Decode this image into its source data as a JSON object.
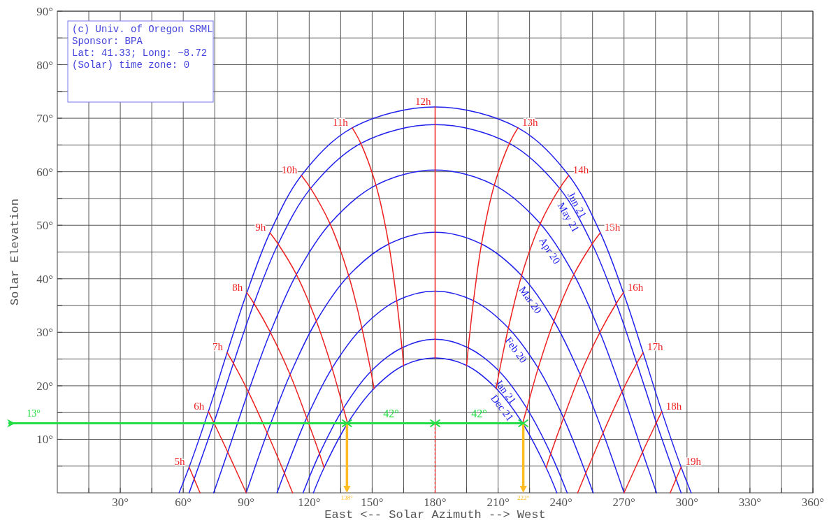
{
  "chart_data": {
    "type": "line",
    "xlabel": "East <-- Solar Azimuth --> West",
    "ylabel": "Solar Elevation",
    "xlim": [
      0,
      360
    ],
    "ylim": [
      0,
      90
    ],
    "xticks": [
      {
        "value": 15,
        "label": null
      },
      {
        "value": 30,
        "label": "30°"
      },
      {
        "value": 45,
        "label": null
      },
      {
        "value": 60,
        "label": "60°"
      },
      {
        "value": 75,
        "label": null
      },
      {
        "value": 90,
        "label": "90°"
      },
      {
        "value": 105,
        "label": null
      },
      {
        "value": 120,
        "label": "120°"
      },
      {
        "value": 135,
        "label": null
      },
      {
        "value": 150,
        "label": "150°"
      },
      {
        "value": 165,
        "label": null
      },
      {
        "value": 180,
        "label": "180°"
      },
      {
        "value": 195,
        "label": null
      },
      {
        "value": 210,
        "label": "210°"
      },
      {
        "value": 225,
        "label": null
      },
      {
        "value": 240,
        "label": "240°"
      },
      {
        "value": 255,
        "label": null
      },
      {
        "value": 270,
        "label": "270°"
      },
      {
        "value": 285,
        "label": null
      },
      {
        "value": 300,
        "label": "300°"
      },
      {
        "value": 315,
        "label": null
      },
      {
        "value": 330,
        "label": "330°"
      },
      {
        "value": 345,
        "label": null
      },
      {
        "value": 360,
        "label": "360°"
      }
    ],
    "yticks": [
      {
        "value": 5,
        "label": null
      },
      {
        "value": 10,
        "label": "10°"
      },
      {
        "value": 15,
        "label": null
      },
      {
        "value": 20,
        "label": "20°"
      },
      {
        "value": 25,
        "label": null
      },
      {
        "value": 30,
        "label": "30°"
      },
      {
        "value": 35,
        "label": null
      },
      {
        "value": 40,
        "label": "40°"
      },
      {
        "value": 45,
        "label": null
      },
      {
        "value": 50,
        "label": "50°"
      },
      {
        "value": 55,
        "label": null
      },
      {
        "value": 60,
        "label": "60°"
      },
      {
        "value": 65,
        "label": null
      },
      {
        "value": 70,
        "label": "70°"
      },
      {
        "value": 75,
        "label": null
      },
      {
        "value": 80,
        "label": "80°"
      },
      {
        "value": 85,
        "label": null
      },
      {
        "value": 90,
        "label": "90°"
      }
    ],
    "grid": true,
    "annotations": [
      "(c) Univ. of Oregon SRML",
      "Sponsor: BPA",
      "Lat: 41.33; Long: −8.72",
      "(Solar) time zone: 0",
      {
        "text": "42°",
        "x": 159,
        "y": 13
      },
      {
        "text": "42°",
        "x": 201,
        "y": 13
      }
    ],
    "ref_lines": [
      {
        "axis": "y",
        "value": 13,
        "label": "13°",
        "color": "#22dd44"
      },
      {
        "axis": "x",
        "value": 138,
        "label": "138°",
        "color": "#ffbb22"
      },
      {
        "axis": "x",
        "value": 222,
        "label": "222°",
        "color": "#ffbb22"
      }
    ],
    "series": [
      {
        "name": "Jun 21",
        "color": "#2222ee",
        "x": [
          58,
          62.8,
          72,
          80.9,
          90.3,
          101.3,
          116.3,
          140.5,
          180,
          219.5,
          243.7,
          258.7,
          269.7,
          279.1,
          288,
          297.2,
          302
        ],
        "values": [
          0,
          4.8,
          15.2,
          26.2,
          37.4,
          48.6,
          59.3,
          68.2,
          72.1,
          68.2,
          59.3,
          48.6,
          37.4,
          26.2,
          15.2,
          4.8,
          0
        ]
      },
      {
        "name": "May 21",
        "color": "#2222ee",
        "x": [
          62.8,
          65.2,
          74.6,
          83.9,
          93.7,
          105.2,
          120.7,
          144.6,
          180,
          215.4,
          239.3,
          254.8,
          266.3,
          276.1,
          285.4,
          294.8,
          297.2
        ],
        "values": [
          0,
          2.6,
          13.1,
          24.2,
          35.4,
          46.5,
          56.9,
          65.3,
          68.8,
          65.3,
          56.9,
          46.5,
          35.4,
          24.2,
          13.1,
          2.6,
          0
        ]
      },
      {
        "name": "Apr 20",
        "color": "#2222ee",
        "x": [
          74.5,
          81.2,
          91,
          101.5,
          113.9,
          129.9,
          151.8,
          180,
          208.2,
          230.1,
          246.1,
          258.5,
          269,
          278.8,
          285.5
        ],
        "values": [
          0,
          7.6,
          18.9,
          30,
          40.8,
          50.3,
          57.5,
          60.3,
          57.5,
          50.3,
          40.8,
          30,
          18.9,
          7.6,
          0
        ]
      },
      {
        "name": "Mar 20",
        "color": "#2222ee",
        "x": [
          90,
          100,
          110.9,
          123.4,
          138.8,
          157.9,
          180,
          202.1,
          221.2,
          236.6,
          249.1,
          260,
          270
        ],
        "values": [
          0,
          11.2,
          22.1,
          32.1,
          40.6,
          46.5,
          48.7,
          46.5,
          40.6,
          32.1,
          22.1,
          11.2,
          0
        ]
      },
      {
        "name": "Feb 20",
        "color": "#2222ee",
        "x": [
          104.7,
          108.2,
          118.8,
          130.9,
          145.1,
          161.7,
          180,
          198.3,
          214.9,
          229.1,
          241.2,
          251.8,
          255.3
        ],
        "values": [
          0,
          3.7,
          14,
          23.3,
          30.8,
          35.9,
          37.7,
          35.9,
          30.8,
          23.3,
          14,
          3.7,
          0
        ]
      },
      {
        "name": "Jan 21",
        "color": "#2222ee",
        "x": [
          117.1,
          124.9,
          136.3,
          149.4,
          164.2,
          180,
          195.8,
          210.6,
          223.7,
          235.1,
          242.9
        ],
        "values": [
          0,
          7.3,
          15.8,
          22.7,
          27.1,
          28.7,
          27.1,
          22.7,
          15.8,
          7.3,
          0
        ]
      },
      {
        "name": "Dec 21",
        "color": "#2222ee",
        "x": [
          122,
          127.1,
          138.3,
          150.9,
          165,
          180,
          195,
          209.1,
          221.7,
          232.9,
          238
        ],
        "values": [
          0,
          4.7,
          13,
          19.5,
          23.8,
          25.2,
          23.8,
          19.5,
          13,
          4.7,
          0
        ]
      },
      {
        "name": "5h",
        "color": "#ee2222",
        "x": [
          62.8,
          65.2,
          68
        ],
        "values": [
          4.8,
          2.6,
          0
        ]
      },
      {
        "name": "6h",
        "color": "#ee2222",
        "x": [
          72,
          74.6,
          81.2,
          90
        ],
        "values": [
          15.2,
          13.1,
          7.6,
          0
        ]
      },
      {
        "name": "7h",
        "color": "#ee2222",
        "x": [
          80.9,
          83.9,
          91,
          100,
          108.2,
          112.1
        ],
        "values": [
          26.2,
          24.2,
          18.9,
          11.2,
          3.7,
          0
        ]
      },
      {
        "name": "8h",
        "color": "#ee2222",
        "x": [
          90.3,
          93.7,
          101.5,
          110.9,
          118.8,
          124.9,
          127.1
        ],
        "values": [
          37.4,
          35.4,
          30,
          22.1,
          14,
          7.3,
          4.7
        ]
      },
      {
        "name": "9h",
        "color": "#ee2222",
        "x": [
          101.3,
          105.2,
          113.9,
          123.4,
          130.9,
          136.3,
          138.3
        ],
        "values": [
          48.6,
          46.5,
          40.8,
          32.1,
          23.3,
          15.8,
          13
        ]
      },
      {
        "name": "10h",
        "color": "#ee2222",
        "x": [
          116.3,
          120.7,
          129.9,
          138.8,
          145.1,
          149.4,
          150.9
        ],
        "values": [
          59.3,
          56.9,
          50.3,
          40.6,
          30.8,
          22.7,
          19.5
        ]
      },
      {
        "name": "11h",
        "color": "#ee2222",
        "x": [
          140.5,
          144.6,
          151.8,
          157.9,
          161.7,
          164.2,
          165
        ],
        "values": [
          68.2,
          65.3,
          57.5,
          46.5,
          35.9,
          27.1,
          23.8
        ]
      },
      {
        "name": "12h",
        "color": "#ee2222",
        "x": [
          180,
          180,
          180,
          180,
          180,
          180,
          180
        ],
        "values": [
          72.1,
          68.8,
          60.3,
          48.7,
          37.7,
          28.7,
          25.2
        ]
      },
      {
        "name": "13h",
        "color": "#ee2222",
        "x": [
          219.5,
          215.4,
          208.2,
          202.1,
          198.3,
          195.8,
          195
        ],
        "values": [
          68.2,
          65.3,
          57.5,
          46.5,
          35.9,
          27.1,
          23.8
        ]
      },
      {
        "name": "14h",
        "color": "#ee2222",
        "x": [
          243.7,
          239.3,
          230.1,
          221.2,
          214.9,
          210.6,
          209.1
        ],
        "values": [
          59.3,
          56.9,
          50.3,
          40.6,
          30.8,
          22.7,
          19.5
        ]
      },
      {
        "name": "15h",
        "color": "#ee2222",
        "x": [
          258.7,
          254.8,
          246.1,
          236.6,
          229.1,
          223.7,
          221.7
        ],
        "values": [
          48.6,
          46.5,
          40.8,
          32.1,
          23.3,
          15.8,
          13
        ]
      },
      {
        "name": "16h",
        "color": "#ee2222",
        "x": [
          269.7,
          266.3,
          258.5,
          249.1,
          241.2,
          235.1,
          232.9
        ],
        "values": [
          37.4,
          35.4,
          30,
          22.1,
          14,
          7.3,
          4.7
        ]
      },
      {
        "name": "17h",
        "color": "#ee2222",
        "x": [
          279.1,
          276.1,
          269,
          260,
          251.8,
          247.9
        ],
        "values": [
          26.2,
          24.2,
          18.9,
          11.2,
          3.7,
          0
        ]
      },
      {
        "name": "18h",
        "color": "#ee2222",
        "x": [
          288,
          285.4,
          278.8,
          270
        ],
        "values": [
          15.2,
          13.1,
          7.6,
          0
        ]
      },
      {
        "name": "19h",
        "color": "#ee2222",
        "x": [
          297.2,
          294.8,
          292
        ],
        "values": [
          4.8,
          2.6,
          0
        ]
      },
      {
        "color": "#ee2222",
        "line_style": "dotted",
        "x": [
          180,
          180
        ],
        "values": [
          13,
          0
        ]
      }
    ]
  }
}
